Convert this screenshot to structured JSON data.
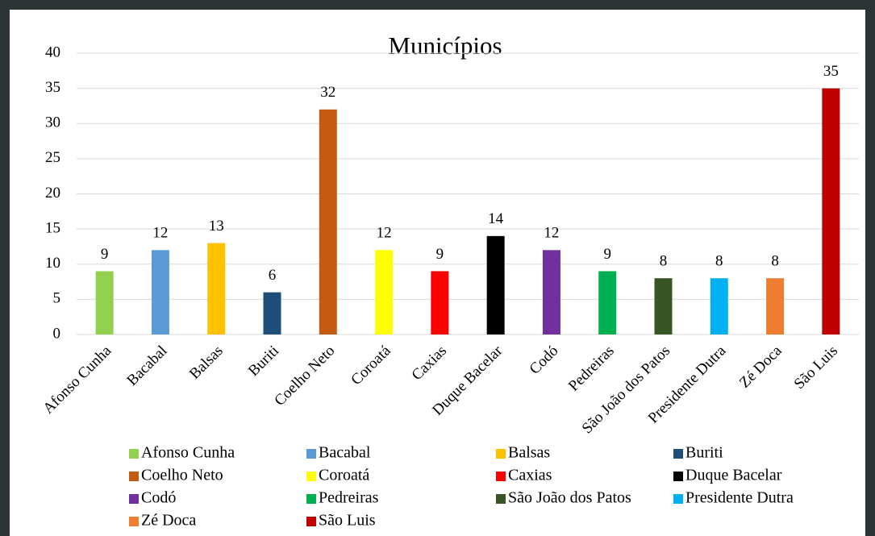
{
  "chart_data": {
    "type": "bar",
    "title": "Municípios",
    "categories": [
      "Afonso Cunha",
      "Bacabal",
      "Balsas",
      "Buriti",
      "Coelho Neto",
      "Coroatá",
      "Caxias",
      "Duque Bacelar",
      "Codó",
      "Pedreiras",
      "São João dos Patos",
      "Presidente Dutra",
      "Zé Doca",
      "São Luis"
    ],
    "values": [
      9,
      12,
      13,
      6,
      32,
      12,
      9,
      14,
      12,
      9,
      8,
      8,
      8,
      35
    ],
    "colors": [
      "#92d050",
      "#5b9bd5",
      "#ffc000",
      "#1f4e79",
      "#c55a11",
      "#ffff00",
      "#ff0000",
      "#000000",
      "#7030a0",
      "#00b050",
      "#375623",
      "#00b0f0",
      "#ed7d31",
      "#c00000"
    ],
    "ylim": [
      0,
      40
    ],
    "yticks": [
      0,
      5,
      10,
      15,
      20,
      25,
      30,
      35,
      40
    ],
    "grid": true,
    "legend": "bottom"
  }
}
